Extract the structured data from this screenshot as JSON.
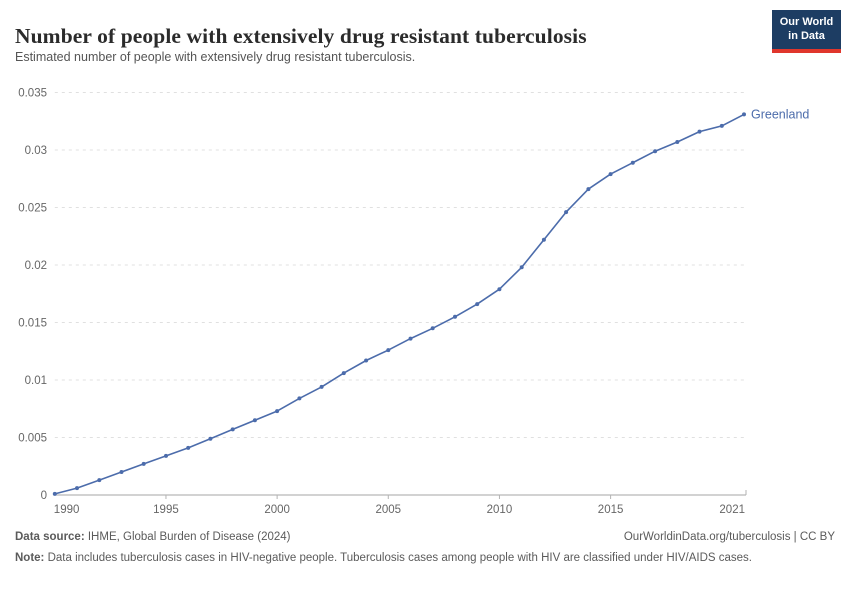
{
  "header": {
    "title": "Number of people with extensively drug resistant tuberculosis",
    "subtitle": "Estimated number of people with extensively drug resistant tuberculosis.",
    "logo": {
      "line1": "Our World",
      "line2": "in Data",
      "bg_color": "#1d3d63",
      "accent_color": "#e0362c"
    }
  },
  "chart_data": {
    "type": "line",
    "title": "Number of people with extensively drug resistant tuberculosis",
    "xlabel": "",
    "ylabel": "",
    "xlim": [
      1990,
      2021
    ],
    "ylim": [
      0,
      0.035
    ],
    "grid": "horizontal-dashed",
    "legend_position": "end-of-line-label",
    "x_ticks": [
      1990,
      1995,
      2000,
      2005,
      2010,
      2015,
      2021
    ],
    "y_ticks": [
      0,
      0.005,
      0.01,
      0.015,
      0.02,
      0.025,
      0.03,
      0.035
    ],
    "x": [
      1990,
      1991,
      1992,
      1993,
      1994,
      1995,
      1996,
      1997,
      1998,
      1999,
      2000,
      2001,
      2002,
      2003,
      2004,
      2005,
      2006,
      2007,
      2008,
      2009,
      2010,
      2011,
      2012,
      2013,
      2014,
      2015,
      2016,
      2017,
      2018,
      2019,
      2020,
      2021
    ],
    "series": [
      {
        "name": "Greenland",
        "color": "#4c6cab",
        "values": [
          0.0001,
          0.0006,
          0.0013,
          0.002,
          0.0027,
          0.0034,
          0.0041,
          0.0049,
          0.0057,
          0.0065,
          0.0073,
          0.0084,
          0.0094,
          0.0106,
          0.0117,
          0.0126,
          0.0136,
          0.0145,
          0.0155,
          0.0166,
          0.0179,
          0.0198,
          0.0222,
          0.0246,
          0.0266,
          0.0279,
          0.0289,
          0.0299,
          0.0307,
          0.0316,
          0.0321,
          0.0331
        ]
      }
    ],
    "style": {
      "gridline_color": "#e0e0e0",
      "axis_color": "#a5a5a5",
      "tick_color": "#b3b3b3",
      "tick_label_color": "#666666"
    }
  },
  "footer": {
    "source_label": "Data source:",
    "source_text": " IHME, Global Burden of Disease (2024)",
    "link_text": "OurWorldinData.org/tuberculosis | CC BY",
    "note_label": "Note:",
    "note_text": " Data includes tuberculosis cases in HIV-negative people. Tuberculosis cases among people with HIV are classified under HIV/AIDS cases."
  }
}
